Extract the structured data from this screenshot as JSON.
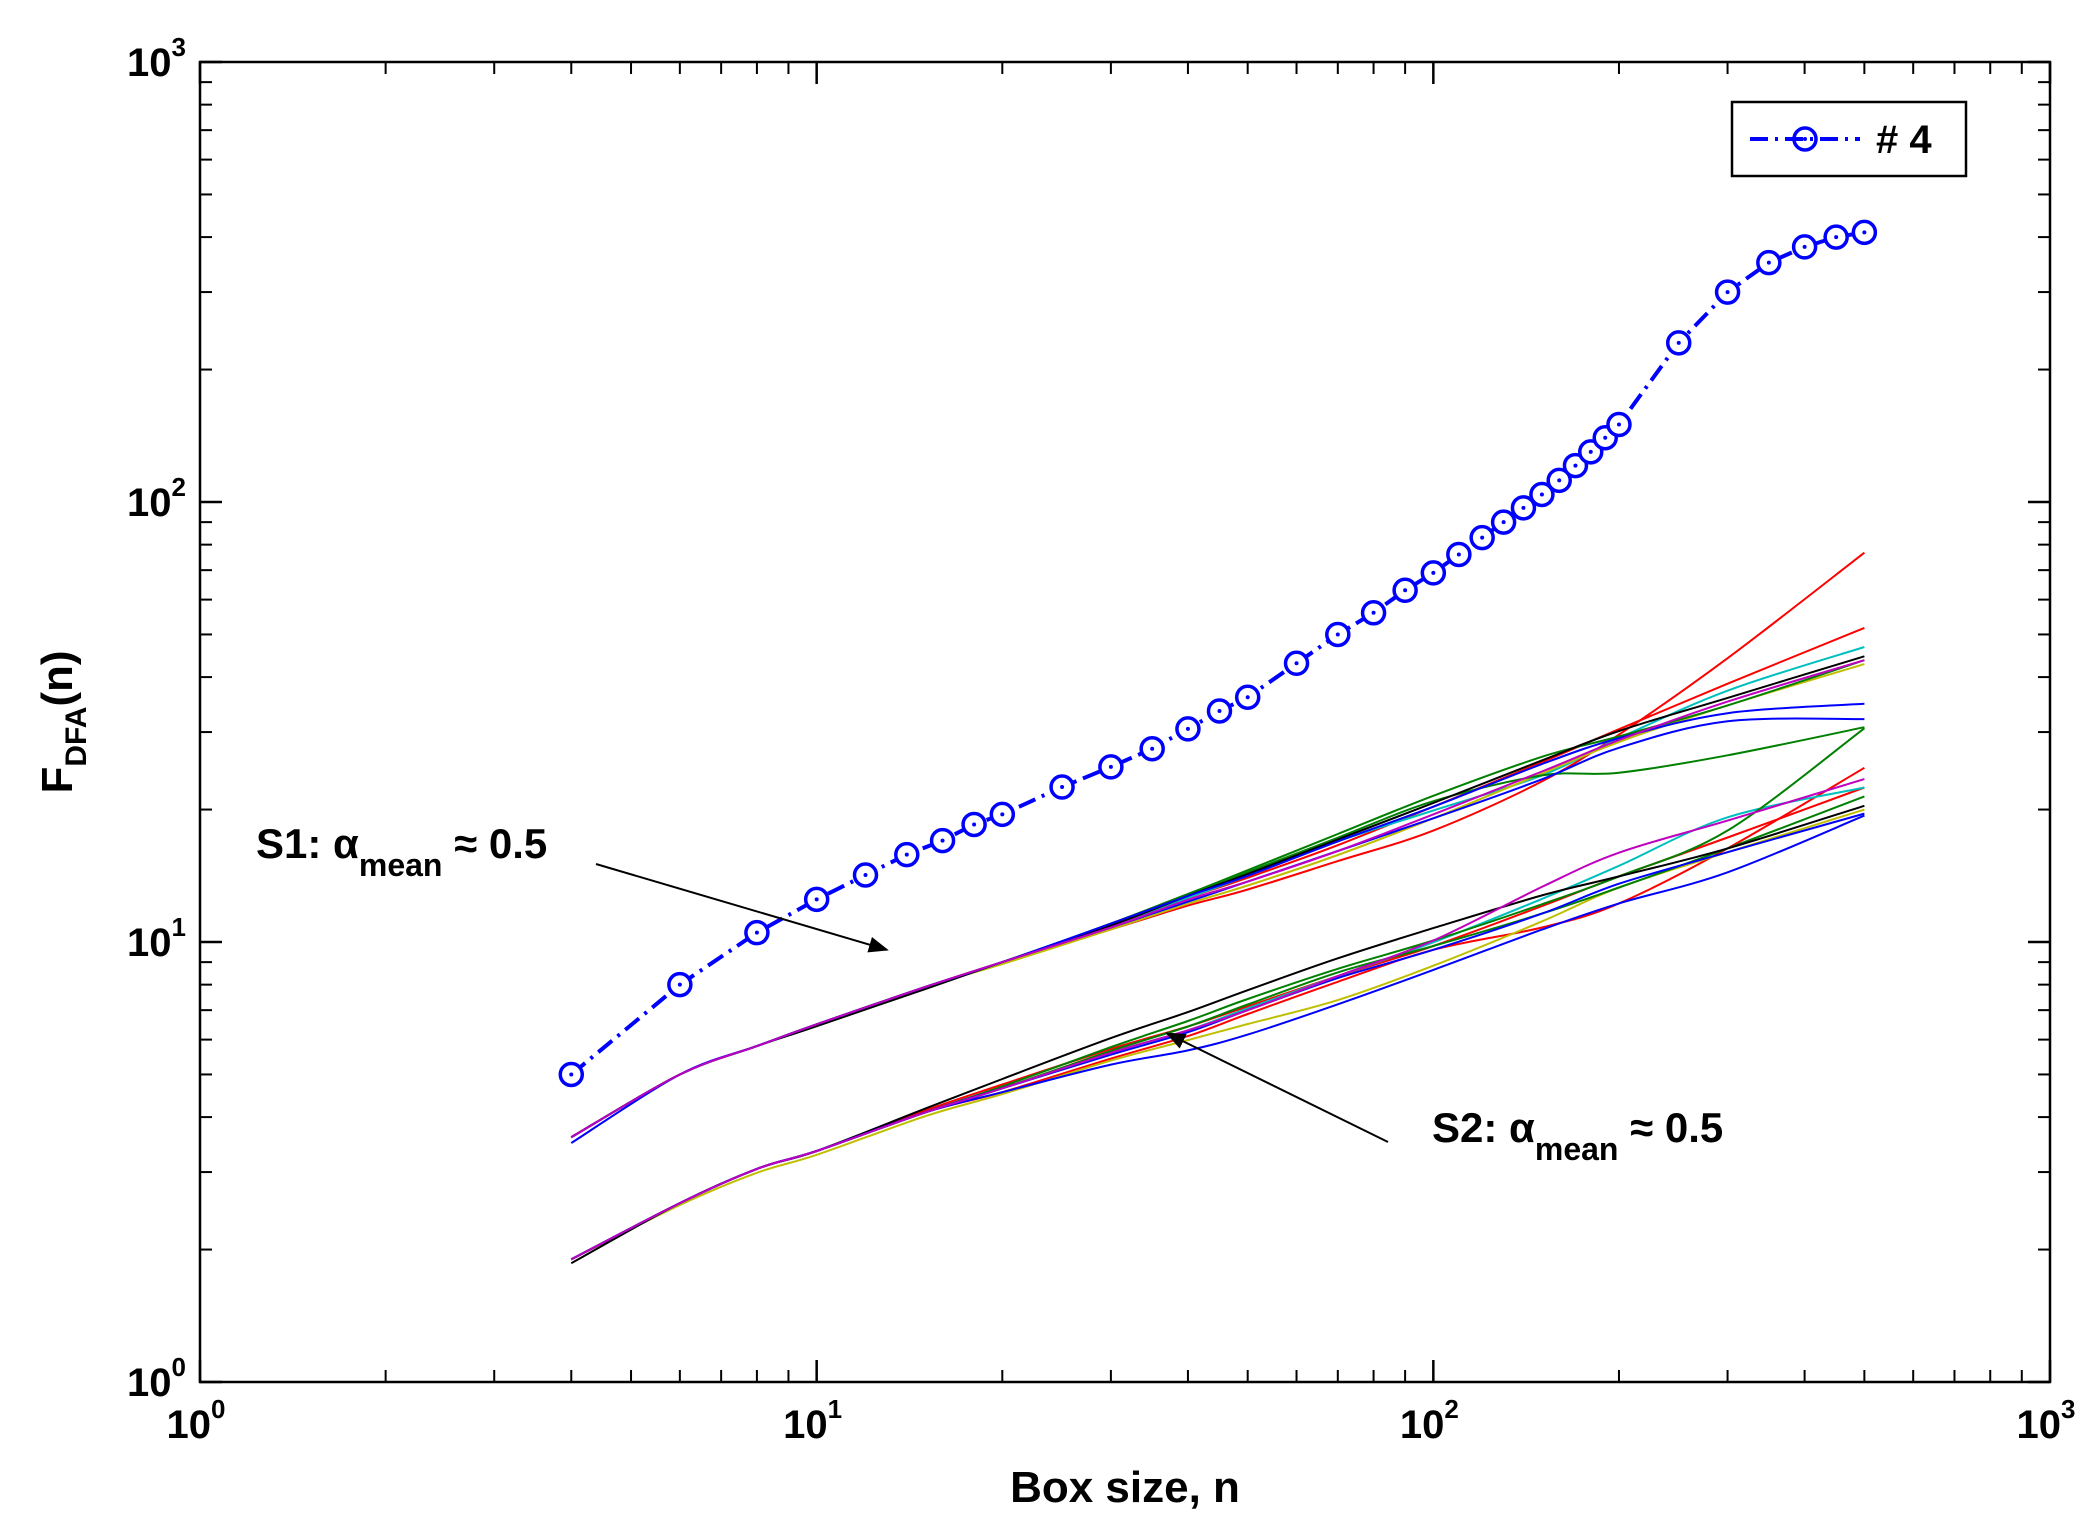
{
  "chart_data": {
    "type": "line",
    "xscale": "log",
    "yscale": "log",
    "xlim": [
      1,
      1000
    ],
    "ylim": [
      1,
      1000
    ],
    "xlabel": "Box size, n",
    "ylabel": {
      "main": "F",
      "sub": "DFA",
      "suffix": "(n)"
    },
    "x_ticks": [
      {
        "base": "10",
        "exp": "0",
        "value": 1
      },
      {
        "base": "10",
        "exp": "1",
        "value": 10
      },
      {
        "base": "10",
        "exp": "2",
        "value": 100
      },
      {
        "base": "10",
        "exp": "3",
        "value": 1000
      }
    ],
    "y_ticks": [
      {
        "base": "10",
        "exp": "0",
        "value": 1
      },
      {
        "base": "10",
        "exp": "1",
        "value": 10
      },
      {
        "base": "10",
        "exp": "2",
        "value": 100
      },
      {
        "base": "10",
        "exp": "3",
        "value": 1000
      }
    ],
    "legend": {
      "position": "top-right",
      "entries": [
        {
          "label": "# 4",
          "color": "#0000ff",
          "marker": "circle",
          "linestyle": "dash-dot"
        }
      ]
    },
    "highlight_series": {
      "name": "# 4",
      "color": "#0000ff",
      "x": [
        4,
        6,
        8,
        10,
        12,
        14,
        16,
        18,
        20,
        25,
        30,
        35,
        40,
        45,
        50,
        60,
        70,
        80,
        90,
        100,
        110,
        120,
        130,
        140,
        150,
        160,
        170,
        180,
        190,
        200,
        250,
        300,
        350,
        400,
        450,
        500
      ],
      "y": [
        5,
        8,
        10.5,
        12.5,
        14.2,
        15.8,
        17,
        18.5,
        19.5,
        22.5,
        25,
        27.5,
        30.5,
        33.5,
        36,
        43,
        50,
        56,
        63,
        69,
        76,
        83,
        90,
        97,
        104,
        112,
        121,
        130,
        140,
        150,
        230,
        300,
        350,
        380,
        400,
        410
      ]
    },
    "groups": [
      {
        "name": "S1",
        "x": [
          4,
          6,
          8,
          10,
          15,
          20,
          30,
          40,
          50,
          70,
          100,
          150,
          200,
          300,
          500
        ],
        "base_y": [
          3.6,
          5.0,
          5.8,
          6.5,
          7.9,
          9.0,
          10.9,
          12.6,
          14.0,
          16.6,
          19.9,
          24.4,
          28.2,
          34.5,
          44.6
        ],
        "series": [
          {
            "color": "#ff0000",
            "scale": [
              1,
              1,
              1,
              1,
              1,
              1,
              0.98,
              0.96,
              0.94,
              0.92,
              0.9,
              0.95,
              1.05,
              1.28,
              1.72
            ]
          },
          {
            "color": "#ff0000",
            "scale": [
              1,
              1,
              1,
              1,
              1,
              1,
              1,
              1,
              1,
              1,
              1.02,
              1.05,
              1.08,
              1.12,
              1.16
            ]
          },
          {
            "color": "#00bfbf",
            "scale": [
              1,
              1,
              1,
              1,
              1,
              1,
              1,
              1,
              1.01,
              1.02,
              1.0,
              0.98,
              1.03,
              1.08,
              1.05
            ]
          },
          {
            "color": "#bfbf00",
            "scale": [
              1,
              1,
              1,
              1,
              1,
              0.99,
              0.98,
              0.97,
              0.96,
              0.95,
              0.96,
              0.99,
              1.01,
              1.0,
              0.96
            ]
          },
          {
            "color": "#008000",
            "scale": [
              1,
              1,
              1,
              1,
              1,
              1,
              1.01,
              1.02,
              1.04,
              1.06,
              1.08,
              1.08,
              1.04,
              1.0,
              0.98
            ]
          },
          {
            "color": "#008000",
            "scale": [
              1,
              1,
              1,
              1,
              1,
              1,
              1.01,
              1.02,
              1.03,
              1.04,
              1.05,
              0.98,
              0.86,
              0.77,
              0.69
            ]
          },
          {
            "color": "#000000",
            "scale": [
              1,
              1,
              1,
              0.99,
              0.99,
              1.0,
              1.0,
              1.01,
              1.02,
              1.03,
              1.04,
              1.06,
              1.07,
              1.04,
              1.0
            ]
          },
          {
            "color": "#0000ff",
            "scale": [
              1,
              1,
              1,
              1.0,
              1.0,
              1.0,
              1.01,
              1.01,
              1.01,
              1.02,
              1.02,
              1.04,
              1.03,
              0.96,
              0.78
            ]
          },
          {
            "color": "#0000ff",
            "scale": [
              0.97,
              1,
              1,
              1.0,
              1.0,
              1.0,
              0.99,
              0.98,
              0.98,
              0.97,
              0.96,
              0.96,
              0.98,
              0.92,
              0.72
            ]
          },
          {
            "color": "#bf00bf",
            "scale": [
              1,
              1,
              1,
              1,
              1,
              1,
              0.99,
              0.99,
              0.98,
              0.97,
              0.98,
              1.0,
              1.02,
              1.02,
              0.98
            ]
          }
        ]
      },
      {
        "name": "S2",
        "x": [
          4,
          6,
          8,
          10,
          15,
          20,
          30,
          40,
          50,
          70,
          100,
          150,
          200,
          300,
          500
        ],
        "base_y": [
          1.9,
          2.55,
          3.05,
          3.35,
          4.1,
          4.65,
          5.6,
          6.3,
          7.0,
          8.2,
          9.6,
          11.6,
          13.3,
          16.0,
          20.4
        ],
        "series": [
          {
            "color": "#ff0000",
            "scale": [
              1,
              1,
              1,
              1,
              1.0,
              0.98,
              0.97,
              0.97,
              0.98,
              0.99,
              1.0,
              0.93,
              0.92,
              1.02,
              1.22
            ]
          },
          {
            "color": "#ff0000",
            "scale": [
              1,
              1,
              1,
              1,
              1.01,
              1.02,
              1.02,
              1.02,
              1.02,
              1.02,
              1.02,
              1.04,
              1.06,
              1.08,
              1.1
            ]
          },
          {
            "color": "#00bfbf",
            "scale": [
              1,
              1,
              1,
              1,
              1.0,
              1.0,
              1.0,
              1.0,
              1.01,
              1.02,
              1.04,
              1.08,
              1.12,
              1.2,
              1.1
            ]
          },
          {
            "color": "#bfbf00",
            "scale": [
              1,
              0.99,
              0.98,
              0.98,
              0.98,
              0.97,
              0.96,
              0.95,
              0.93,
              0.9,
              0.92,
              0.96,
              1.0,
              1.0,
              0.98
            ]
          },
          {
            "color": "#008000",
            "scale": [
              1,
              1,
              1,
              1,
              1.0,
              1.01,
              1.03,
              1.05,
              1.06,
              1.06,
              1.05,
              1.05,
              1.06,
              1.12,
              1.5
            ]
          },
          {
            "color": "#008000",
            "scale": [
              1,
              1,
              1,
              1,
              1.0,
              1.0,
              1.01,
              1.02,
              1.03,
              1.04,
              1.02,
              1.0,
              1.0,
              1.02,
              1.05
            ]
          },
          {
            "color": "#000000",
            "scale": [
              0.98,
              1,
              1,
              1,
              1.02,
              1.05,
              1.08,
              1.1,
              1.11,
              1.12,
              1.12,
              1.1,
              1.06,
              1.02,
              1.0
            ]
          },
          {
            "color": "#0000ff",
            "scale": [
              1,
              1,
              1,
              1,
              1.0,
              0.98,
              0.94,
              0.9,
              0.88,
              0.88,
              0.9,
              0.92,
              0.92,
              0.9,
              0.95
            ]
          },
          {
            "color": "#0000ff",
            "scale": [
              1,
              1,
              1,
              1,
              1.0,
              1.0,
              0.99,
              0.99,
              1.0,
              1.01,
              1.0,
              1.0,
              1.02,
              1.0,
              0.96
            ]
          },
          {
            "color": "#bf00bf",
            "scale": [
              1,
              1,
              1,
              1,
              1.0,
              1.0,
              1.0,
              1.0,
              1.0,
              1.02,
              1.05,
              1.15,
              1.2,
              1.18,
              1.15
            ]
          }
        ]
      }
    ],
    "annotations": [
      {
        "id": "s1",
        "prefix": "S1: ",
        "symbol": "α",
        "subscript": "mean",
        "suffix": " ≈ 0.5",
        "arrow_to": [
          13,
          9.6
        ]
      },
      {
        "id": "s2",
        "prefix": "S2: ",
        "symbol": "α",
        "subscript": "mean",
        "suffix": " ≈ 0.5",
        "arrow_to": [
          37,
          6.2
        ]
      }
    ]
  }
}
